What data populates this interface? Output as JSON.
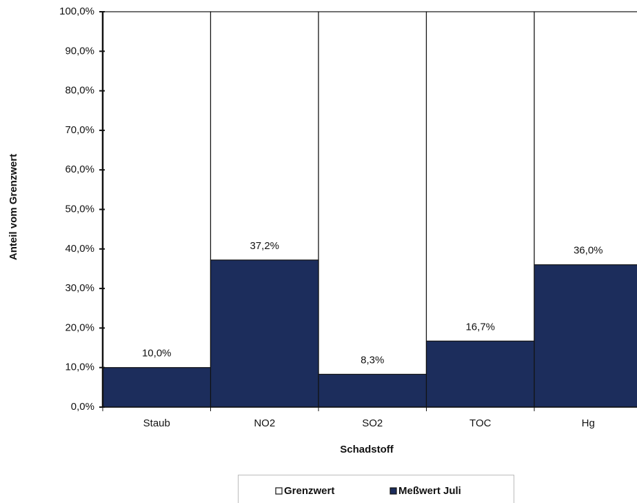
{
  "chart_data": {
    "type": "bar",
    "x_label": "Schadstoff",
    "y_label": "Anteil vom Grenzwert",
    "categories": [
      "Staub",
      "NO2",
      "SO2",
      "TOC",
      "Hg"
    ],
    "series": [
      {
        "name": "Grenzwert",
        "color": "#ffffff",
        "values": [
          100,
          100,
          100,
          100,
          100
        ]
      },
      {
        "name": "Meßwert Juli",
        "color": "#1c2d5c",
        "values": [
          10.0,
          37.2,
          8.3,
          16.7,
          36.0
        ],
        "value_labels": [
          "10,0%",
          "37,2%",
          "8,3%",
          "16,7%",
          "36,0%"
        ]
      }
    ],
    "ylim": [
      0,
      100
    ],
    "yticks": [
      {
        "value": 0,
        "label": "0,0%"
      },
      {
        "value": 10,
        "label": "10,0%"
      },
      {
        "value": 20,
        "label": "20,0%"
      },
      {
        "value": 30,
        "label": "30,0%"
      },
      {
        "value": 40,
        "label": "40,0%"
      },
      {
        "value": 50,
        "label": "50,0%"
      },
      {
        "value": 60,
        "label": "60,0%"
      },
      {
        "value": 70,
        "label": "70,0%"
      },
      {
        "value": 80,
        "label": "80,0%"
      },
      {
        "value": 90,
        "label": "90,0%"
      },
      {
        "value": 100,
        "label": "100,0%"
      }
    ],
    "grid": false
  }
}
